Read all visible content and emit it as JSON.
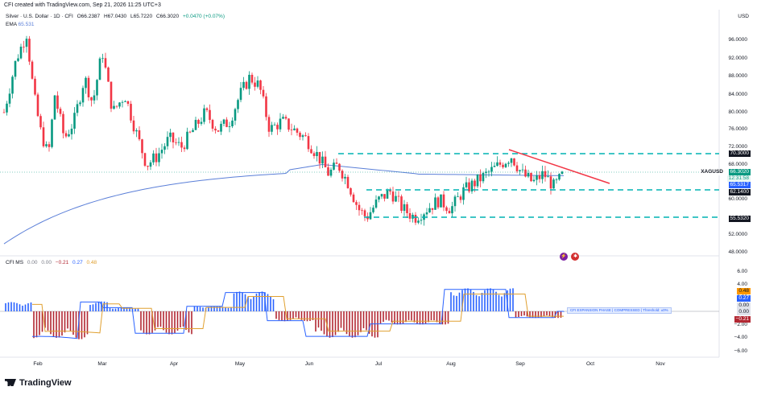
{
  "header": {
    "created_by": "CFI created with TradingView.com, Sep 21, 2026 11:25 UTC+3"
  },
  "symbol_legend": {
    "name": "Silver · U.S. Dollar · 1D · CFI",
    "open": "O66.2387",
    "high": "H67.0430",
    "low": "L65.7220",
    "close": "C66.3020",
    "change": "+0.0470 (+0.07%)"
  },
  "ema_legend": {
    "label": "EMA",
    "value": "65.531"
  },
  "indicator_legend": {
    "label": "CFI MS",
    "v1": "0.00",
    "v2": "0.00",
    "v3": "−0.21",
    "v4": "0.27",
    "v5": "0.48"
  },
  "currency": "USD",
  "price_axis": [
    "96.0000",
    "92.0000",
    "88.0000",
    "84.0000",
    "80.0000",
    "76.0000",
    "72.0000",
    "68.0000",
    "60.0000",
    "52.0000",
    "48.0000"
  ],
  "indicator_axis": [
    "6.00",
    "4.00",
    "2.00",
    "−2.00",
    "−4.00",
    "−6.00"
  ],
  "time_axis": [
    "Feb",
    "Mar",
    "Apr",
    "May",
    "Jun",
    "Jul",
    "Aug",
    "Sep",
    "Oct",
    "Nov"
  ],
  "price_tags": {
    "resistance": "70.3000",
    "symbol": "XAGUSD",
    "last": "66.3020",
    "countdown": "12:31:58",
    "ema": "65.5317",
    "support1": "62.1400",
    "support2": "55.5320"
  },
  "indicator_tags": {
    "a": "0.48",
    "b": "0.27",
    "c": "0.00",
    "d": "0.00",
    "e": "−0.21"
  },
  "cfi_box": "CFI EXPANSION PHASE  |  COMPRESSED  |  Threshold: ±0%",
  "logo": "TradingView",
  "colors": {
    "up": "#089981",
    "down": "#f23645",
    "ema": "#5b7fd8",
    "level": "#00b3b3",
    "trend": "#f23645",
    "hist_up": "#2962ff",
    "hist_down": "#b22833"
  }
}
